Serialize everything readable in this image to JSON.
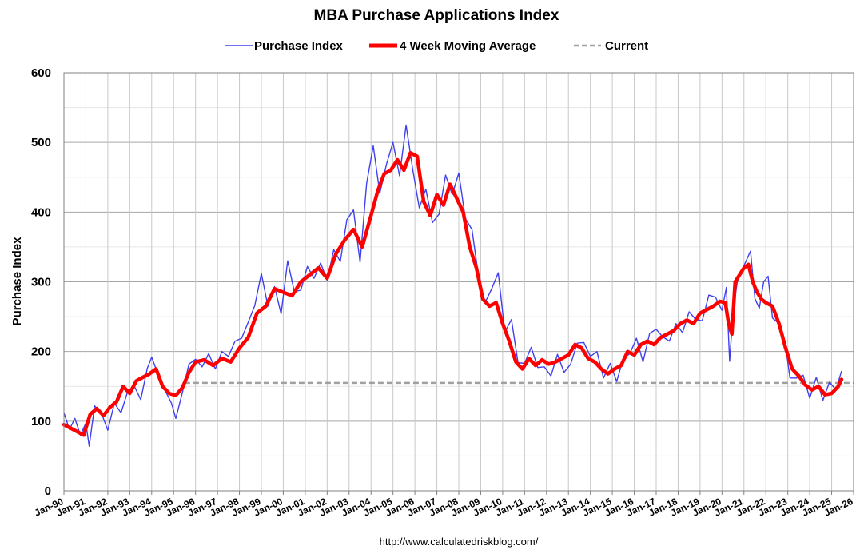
{
  "colors": {
    "purchase_index": "#4040ee",
    "moving_average": "#ff0000",
    "current": "#a0a0a0",
    "grid_major": "#a6a6a6",
    "grid_minor": "#e6e6e6"
  },
  "chart_data": {
    "type": "line",
    "title": "MBA Purchase Applications Index",
    "xlabel": "",
    "ylabel": "Purchase Index",
    "xlim": [
      1990.0,
      2026.0
    ],
    "ylim": [
      0,
      600
    ],
    "grid": true,
    "legend_position": "top-center",
    "yticks": [
      "0",
      "100",
      "200",
      "300",
      "400",
      "500",
      "600"
    ],
    "yminor_step": 50,
    "xticks": [
      "Jan-90",
      "Jan-91",
      "Jan-92",
      "Jan-93",
      "Jan-94",
      "Jan-95",
      "Jan-96",
      "Jan-97",
      "Jan-98",
      "Jan-99",
      "Jan-00",
      "Jan-01",
      "Jan-02",
      "Jan-03",
      "Jan-04",
      "Jan-05",
      "Jan-06",
      "Jan-07",
      "Jan-08",
      "Jan-09",
      "Jan-10",
      "Jan-11",
      "Jan-12",
      "Jan-13",
      "Jan-14",
      "Jan-15",
      "Jan-16",
      "Jan-17",
      "Jan-18",
      "Jan-19",
      "Jan-20",
      "Jan-21",
      "Jan-22",
      "Jan-23",
      "Jan-24",
      "Jan-25",
      "Jan-26"
    ],
    "legend": [
      "Purchase Index",
      "4 Week Moving Average",
      "Current"
    ],
    "source_note": "http://www.calculatedriskblog.com/",
    "series": [
      {
        "name": "Purchase Index",
        "style": "thin",
        "x": [
          1990.0,
          1990.25,
          1990.5,
          1990.75,
          1991.0,
          1991.15,
          1991.4,
          1991.7,
          1992.0,
          1992.3,
          1992.6,
          1992.9,
          1993.2,
          1993.5,
          1993.8,
          1994.0,
          1994.3,
          1994.6,
          1994.9,
          1995.1,
          1995.4,
          1995.7,
          1996.0,
          1996.3,
          1996.6,
          1996.9,
          1997.2,
          1997.5,
          1997.8,
          1998.1,
          1998.4,
          1998.7,
          1999.0,
          1999.3,
          1999.6,
          1999.9,
          2000.2,
          2000.5,
          2000.8,
          2001.1,
          2001.4,
          2001.7,
          2002.0,
          2002.3,
          2002.6,
          2002.9,
          2003.2,
          2003.5,
          2003.8,
          2004.1,
          2004.4,
          2004.7,
          2005.0,
          2005.3,
          2005.6,
          2005.9,
          2006.2,
          2006.5,
          2006.8,
          2007.1,
          2007.4,
          2007.7,
          2008.0,
          2008.3,
          2008.6,
          2008.9,
          2009.2,
          2009.5,
          2009.8,
          2010.1,
          2010.4,
          2010.7,
          2011.0,
          2011.3,
          2011.6,
          2011.9,
          2012.2,
          2012.5,
          2012.8,
          2013.1,
          2013.4,
          2013.7,
          2014.0,
          2014.3,
          2014.6,
          2014.9,
          2015.2,
          2015.5,
          2015.8,
          2016.1,
          2016.4,
          2016.7,
          2017.0,
          2017.3,
          2017.6,
          2017.9,
          2018.2,
          2018.5,
          2018.8,
          2019.1,
          2019.4,
          2019.7,
          2020.0,
          2020.2,
          2020.35,
          2020.5,
          2020.7,
          2020.9,
          2021.1,
          2021.3,
          2021.5,
          2021.7,
          2021.9,
          2022.1,
          2022.3,
          2022.6,
          2022.9,
          2023.1,
          2023.4,
          2023.7,
          2024.0,
          2024.3,
          2024.6,
          2024.9,
          2025.2,
          2025.45
        ],
        "values": [
          112,
          88,
          104,
          80,
          97,
          64,
          122,
          112,
          87,
          126,
          112,
          142,
          151,
          131,
          176,
          192,
          166,
          145,
          126,
          104,
          141,
          182,
          189,
          178,
          197,
          175,
          200,
          193,
          215,
          219,
          242,
          266,
          312,
          265,
          293,
          254,
          330,
          286,
          288,
          322,
          305,
          327,
          302,
          346,
          329,
          389,
          403,
          328,
          441,
          495,
          427,
          468,
          500,
          452,
          525,
          461,
          406,
          433,
          385,
          397,
          453,
          425,
          456,
          391,
          375,
          308,
          270,
          290,
          313,
          228,
          246,
          184,
          183,
          206,
          177,
          178,
          165,
          196,
          170,
          182,
          212,
          213,
          193,
          200,
          162,
          183,
          157,
          190,
          197,
          219,
          185,
          226,
          232,
          221,
          215,
          240,
          227,
          257,
          246,
          244,
          281,
          278,
          259,
          292,
          186,
          258,
          300,
          316,
          330,
          344,
          276,
          262,
          300,
          308,
          248,
          240,
          208,
          162,
          162,
          166,
          133,
          163,
          130,
          156,
          145,
          172
        ]
      },
      {
        "name": "4 Week Moving Average",
        "style": "thick",
        "x": [
          1990.0,
          1990.3,
          1990.6,
          1990.9,
          1991.2,
          1991.5,
          1991.8,
          1992.1,
          1992.4,
          1992.7,
          1993.0,
          1993.3,
          1993.6,
          1993.9,
          1994.2,
          1994.5,
          1994.8,
          1995.1,
          1995.4,
          1995.7,
          1996.0,
          1996.4,
          1996.8,
          1997.2,
          1997.6,
          1998.0,
          1998.4,
          1998.8,
          1999.2,
          1999.6,
          2000.0,
          2000.4,
          2000.8,
          2001.2,
          2001.6,
          2002.0,
          2002.4,
          2002.8,
          2003.2,
          2003.6,
          2004.0,
          2004.3,
          2004.6,
          2004.9,
          2005.2,
          2005.5,
          2005.8,
          2006.1,
          2006.4,
          2006.7,
          2007.0,
          2007.3,
          2007.6,
          2007.9,
          2008.2,
          2008.5,
          2008.8,
          2009.1,
          2009.4,
          2009.7,
          2010.0,
          2010.3,
          2010.6,
          2010.9,
          2011.2,
          2011.5,
          2011.8,
          2012.1,
          2012.4,
          2012.7,
          2013.0,
          2013.3,
          2013.6,
          2013.9,
          2014.2,
          2014.5,
          2014.8,
          2015.1,
          2015.4,
          2015.7,
          2016.0,
          2016.3,
          2016.6,
          2016.9,
          2017.2,
          2017.5,
          2017.8,
          2018.1,
          2018.4,
          2018.7,
          2019.0,
          2019.3,
          2019.6,
          2019.9,
          2020.15,
          2020.3,
          2020.45,
          2020.6,
          2020.8,
          2021.0,
          2021.2,
          2021.4,
          2021.6,
          2021.8,
          2022.0,
          2022.3,
          2022.6,
          2022.9,
          2023.2,
          2023.5,
          2023.8,
          2024.1,
          2024.4,
          2024.7,
          2025.0,
          2025.3,
          2025.45
        ],
        "values": [
          95,
          90,
          85,
          80,
          110,
          118,
          108,
          120,
          128,
          150,
          140,
          158,
          163,
          168,
          175,
          150,
          140,
          137,
          148,
          170,
          185,
          188,
          180,
          190,
          185,
          205,
          220,
          255,
          265,
          290,
          285,
          280,
          300,
          310,
          320,
          305,
          340,
          360,
          375,
          350,
          395,
          430,
          455,
          460,
          475,
          460,
          485,
          480,
          415,
          395,
          425,
          410,
          440,
          420,
          400,
          350,
          320,
          275,
          265,
          270,
          240,
          215,
          185,
          175,
          190,
          180,
          188,
          182,
          185,
          190,
          195,
          210,
          205,
          190,
          185,
          175,
          168,
          175,
          180,
          200,
          195,
          210,
          215,
          210,
          220,
          225,
          230,
          240,
          245,
          240,
          255,
          260,
          265,
          272,
          270,
          240,
          225,
          300,
          310,
          320,
          325,
          300,
          285,
          275,
          270,
          265,
          240,
          205,
          175,
          165,
          152,
          145,
          150,
          138,
          140,
          150,
          160
        ]
      },
      {
        "name": "Current",
        "style": "dashed",
        "x": [
          1995.5,
          2026.0
        ],
        "values": [
          155,
          155
        ]
      }
    ]
  }
}
